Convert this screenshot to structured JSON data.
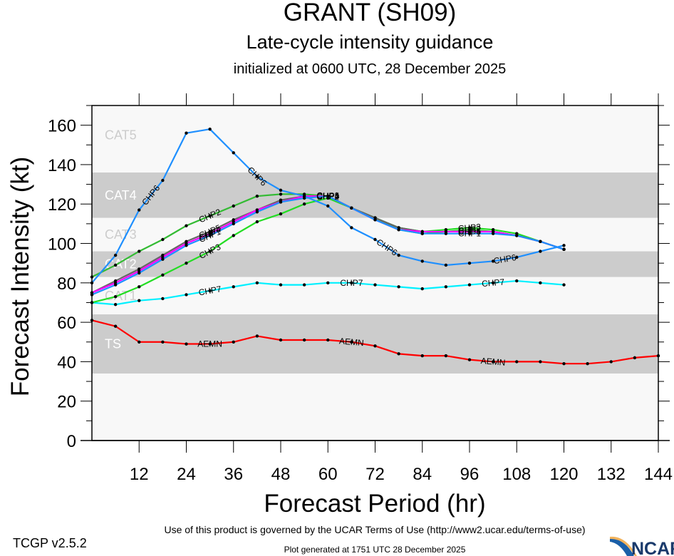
{
  "header": {
    "title": "GRANT (SH09)",
    "subtitle": "Late-cycle intensity guidance",
    "init_line": "initialized at 0600 UTC, 28 December 2025"
  },
  "footer": {
    "terms": "Use of this product is governed by the UCAR Terms of Use (http://www2.ucar.edu/terms-of-use)",
    "version": "TCGP v2.5.2",
    "generated": "Plot generated at 1751 UTC   28 December 2025",
    "logo_text": "NCAR"
  },
  "chart_data": {
    "type": "line",
    "title": "GRANT (SH09)",
    "xlabel": "Forecast Period (hr)",
    "ylabel": "Forecast Intensity (kt)",
    "xlim": [
      0,
      144
    ],
    "ylim": [
      0,
      170
    ],
    "xticks": [
      12,
      24,
      36,
      48,
      60,
      72,
      84,
      96,
      108,
      120,
      132,
      144
    ],
    "yticks": [
      0,
      20,
      40,
      60,
      80,
      100,
      120,
      140,
      160
    ],
    "yminor_step": 10,
    "grid": false,
    "categories_bands": [
      {
        "label": "TS",
        "min": 34,
        "max": 64,
        "shaded": true
      },
      {
        "label": "CAT1",
        "min": 64,
        "max": 83,
        "shaded": false
      },
      {
        "label": "CAT2",
        "min": 83,
        "max": 96,
        "shaded": true
      },
      {
        "label": "CAT3",
        "min": 96,
        "max": 113,
        "shaded": false
      },
      {
        "label": "CAT4",
        "min": 113,
        "max": 136,
        "shaded": true
      },
      {
        "label": "CAT5",
        "min": 136,
        "max": 170,
        "shaded": false
      }
    ],
    "colors": {
      "band_shade": "#cccccc",
      "band_light": "#f8f8f8",
      "band_label_light": "#cccccc",
      "band_label_dark": "#ffffff"
    },
    "series": [
      {
        "name": "AEMN",
        "color": "#ff0000",
        "x": [
          0,
          6,
          12,
          18,
          24,
          30,
          36,
          42,
          48,
          54,
          60,
          66,
          72,
          78,
          84,
          90,
          96,
          102,
          108,
          114,
          120,
          126,
          132,
          138,
          144
        ],
        "values": [
          61,
          58,
          50,
          50,
          49,
          49,
          50,
          53,
          51,
          51,
          51,
          50,
          48,
          44,
          43,
          43,
          41,
          40,
          40,
          40,
          39,
          39,
          40,
          42,
          43
        ],
        "label_at": [
          30,
          66,
          102
        ]
      },
      {
        "name": "CHP7",
        "color": "#00f0ff",
        "x": [
          0,
          6,
          12,
          18,
          24,
          30,
          36,
          42,
          48,
          54,
          60,
          66,
          72,
          78,
          84,
          90,
          96,
          102,
          108,
          114,
          120
        ],
        "values": [
          70,
          69,
          71,
          72,
          74,
          76,
          78,
          80,
          79,
          79,
          80,
          80,
          79,
          78,
          77,
          78,
          79,
          80,
          81,
          80,
          79
        ],
        "label_at": [
          30,
          66,
          102
        ]
      },
      {
        "name": "CHP3",
        "color": "#22dd22",
        "x": [
          0,
          6,
          12,
          18,
          24,
          30,
          36,
          42,
          48,
          54,
          60,
          66,
          72,
          78,
          84,
          90,
          96,
          102,
          108,
          114,
          120
        ],
        "values": [
          70,
          73,
          78,
          84,
          90,
          96,
          104,
          111,
          115,
          120,
          123,
          118,
          113,
          108,
          106,
          107,
          108,
          107,
          105,
          101,
          97
        ],
        "label_at": [
          30,
          96
        ]
      },
      {
        "name": "CHP2",
        "color": "#33bb33",
        "x": [
          0,
          6,
          12,
          18,
          24,
          30,
          36,
          42,
          48,
          54,
          60,
          66,
          72,
          78,
          84,
          90,
          96,
          102,
          108,
          114,
          120
        ],
        "values": [
          83,
          89,
          96,
          102,
          109,
          114,
          119,
          124,
          125,
          125,
          124,
          118,
          113,
          107,
          105,
          106,
          107,
          106,
          104,
          101,
          97
        ],
        "label_at": [
          30,
          60,
          96
        ]
      },
      {
        "name": "CHP5",
        "color": "#666666",
        "x": [
          0,
          6,
          12,
          18,
          24,
          30,
          36,
          42,
          48,
          54,
          60,
          66,
          72,
          78,
          84,
          90,
          96,
          102,
          108,
          114,
          120
        ],
        "values": [
          75,
          81,
          87,
          94,
          101,
          106,
          112,
          117,
          122,
          124,
          124,
          118,
          113,
          108,
          106,
          106,
          106,
          106,
          104,
          101,
          97
        ],
        "label_at": [
          30,
          60,
          96
        ]
      },
      {
        "name": "CHP4",
        "color": "#ff00ff",
        "x": [
          0,
          6,
          12,
          18,
          24,
          30,
          36,
          42,
          48,
          54,
          60,
          66,
          72,
          78,
          84,
          90,
          96,
          102,
          108,
          114,
          120
        ],
        "values": [
          75,
          80,
          86,
          93,
          100,
          105,
          111,
          117,
          121,
          124,
          124,
          118,
          112,
          107,
          106,
          106,
          106,
          106,
          104,
          101,
          97
        ],
        "label_at": [
          30,
          60,
          96
        ]
      },
      {
        "name": "CHP1",
        "color": "#1e8fff",
        "x": [
          0,
          6,
          12,
          18,
          24,
          30,
          36,
          42,
          48,
          54,
          60,
          66,
          72,
          78,
          84,
          90,
          96,
          102,
          108,
          114,
          120
        ],
        "values": [
          74,
          79,
          85,
          92,
          99,
          104,
          110,
          116,
          121,
          123,
          124,
          118,
          112,
          107,
          105,
          105,
          105,
          105,
          104,
          101,
          97
        ],
        "label_at": [
          30,
          60,
          96
        ]
      },
      {
        "name": "CHP6",
        "color": "#1e8fff",
        "x": [
          0,
          6,
          12,
          18,
          24,
          30,
          36,
          42,
          48,
          54,
          60,
          66,
          72,
          78,
          84,
          90,
          96,
          102,
          108,
          114,
          120
        ],
        "values": [
          80,
          94,
          117,
          132,
          156,
          158,
          146,
          134,
          127,
          124,
          119,
          108,
          102,
          94,
          91,
          89,
          90,
          91,
          93,
          96,
          99
        ],
        "label_at": [
          15,
          42,
          75,
          105
        ]
      }
    ]
  }
}
